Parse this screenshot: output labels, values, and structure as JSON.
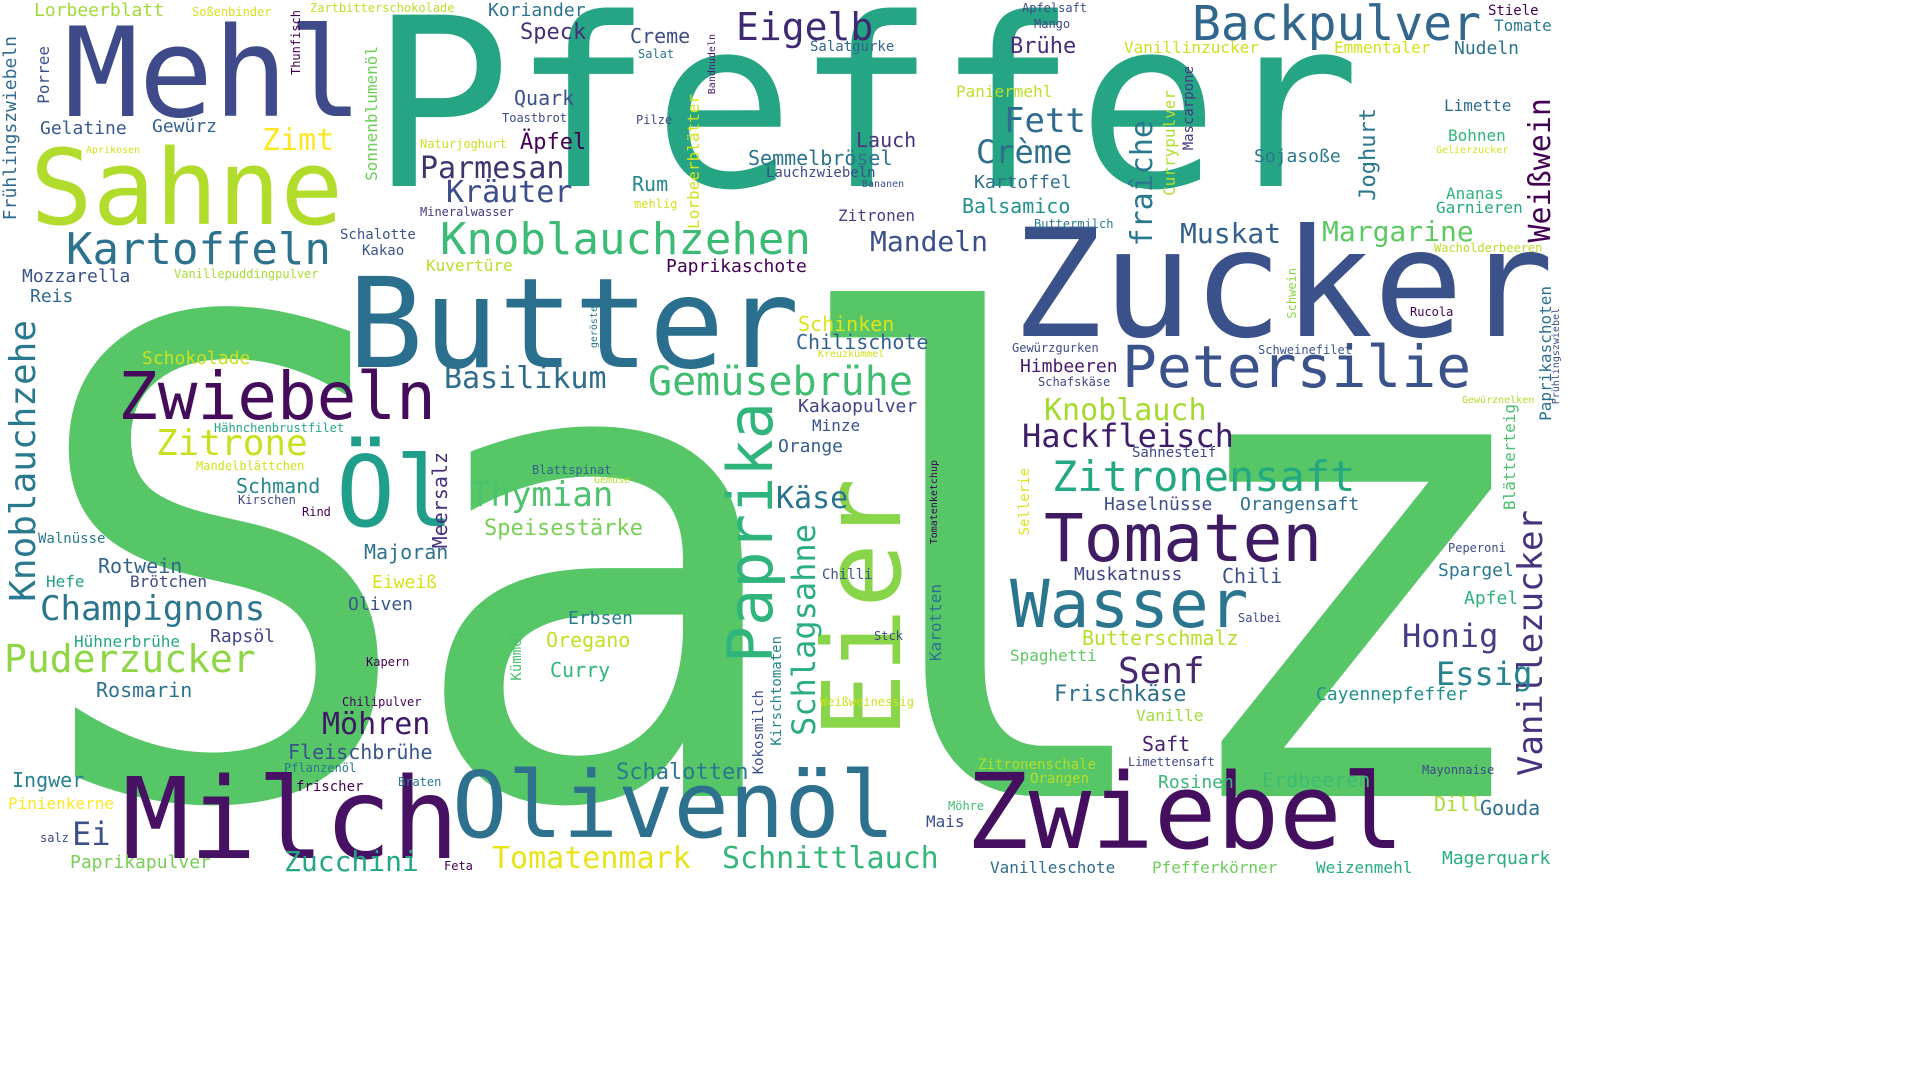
{
  "words": [
    {
      "text": "Salz",
      "color": "#56c667"
    },
    {
      "text": "Pfeffer",
      "color": "#25a584"
    },
    {
      "text": "Zucker",
      "color": "#3b5189"
    },
    {
      "text": "Butter",
      "color": "#2b6f8e"
    },
    {
      "text": "Mehl",
      "color": "#3e4a89"
    },
    {
      "text": "Sahne",
      "color": "#b2dc2c"
    },
    {
      "text": "Milch",
      "color": "#471164"
    },
    {
      "text": "Olivenöl",
      "color": "#2d718e"
    },
    {
      "text": "Zwiebel",
      "color": "#450f5f"
    },
    {
      "text": "Eier",
      "color": "#89d549"
    },
    {
      "text": "Öl",
      "color": "#1f9e89"
    },
    {
      "text": "Wasser",
      "color": "#2a768e"
    },
    {
      "text": "Tomaten",
      "color": "#3f1b63"
    },
    {
      "text": "Petersilie",
      "color": "#3b528b"
    },
    {
      "text": "Zwiebeln",
      "color": "#440c5a"
    },
    {
      "text": "Paprika",
      "color": "#2fb47c"
    },
    {
      "text": "Backpulver",
      "color": "#31668d"
    },
    {
      "text": "Knoblauchzehen",
      "color": "#3bbb75"
    },
    {
      "text": "Kartoffeln",
      "color": "#2c718e"
    },
    {
      "text": "Gemüsebrühe",
      "color": "#40bd72"
    },
    {
      "text": "Zitronensaft",
      "color": "#23a883"
    },
    {
      "text": "Knoblauchzehe",
      "color": "#297a8e"
    },
    {
      "text": "Vanillezucker",
      "color": "#46327e"
    },
    {
      "text": "Puderzucker",
      "color": "#8ed645"
    },
    {
      "text": "Champignons",
      "color": "#2b758e"
    },
    {
      "text": "Schlagsahne",
      "color": "#29af7f"
    },
    {
      "text": "Zitrone",
      "color": "#c8e020"
    },
    {
      "text": "Hackfleisch",
      "color": "#3f1d6a"
    },
    {
      "text": "Thymian",
      "color": "#4cc26c"
    },
    {
      "text": "Eigelb",
      "color": "#3f2a72"
    },
    {
      "text": "Fett",
      "color": "#2f6b8e"
    },
    {
      "text": "Crème",
      "color": "#2e6f8e"
    },
    {
      "text": "fraîche",
      "color": "#2a788e"
    },
    {
      "text": "Weißwein",
      "color": "#440254"
    },
    {
      "text": "Parmesan",
      "color": "#40346e"
    },
    {
      "text": "Kräuter",
      "color": "#3d4d8a"
    },
    {
      "text": "Basilikum",
      "color": "#2f6c8e"
    },
    {
      "text": "Schnittlauch",
      "color": "#35b779"
    },
    {
      "text": "Tomatenmark",
      "color": "#e7e419"
    },
    {
      "text": "Zucchini",
      "color": "#22a884"
    },
    {
      "text": "Möhren",
      "color": "#3f1965"
    },
    {
      "text": "Senf",
      "color": "#46286f"
    },
    {
      "text": "Honig",
      "color": "#433e85"
    },
    {
      "text": "Essig",
      "color": "#25838e"
    },
    {
      "text": "Knoblauch",
      "color": "#a5da31"
    },
    {
      "text": "Mandeln",
      "color": "#3b4f8a"
    },
    {
      "text": "Muskat",
      "color": "#34608d"
    },
    {
      "text": "Margarine",
      "color": "#5ec962"
    },
    {
      "text": "Käse",
      "color": "#2b738e"
    },
    {
      "text": "Zimt",
      "color": "#fde725"
    },
    {
      "text": "Ei",
      "color": "#3c508b"
    },
    {
      "text": "Schalotten",
      "color": "#29788e"
    },
    {
      "text": "Speck",
      "color": "#472d7b"
    },
    {
      "text": "Creme",
      "color": "#3c4f8a"
    },
    {
      "text": "Brühe",
      "color": "#472c7a"
    },
    {
      "text": "Quark",
      "color": "#3b518b"
    },
    {
      "text": "Äpfel",
      "color": "#440154"
    },
    {
      "text": "Lauch",
      "color": "#463480"
    },
    {
      "text": "Semmelbrösel",
      "color": "#2c738e"
    },
    {
      "text": "Rum",
      "color": "#24868e"
    },
    {
      "text": "Joghurt",
      "color": "#2a778e"
    },
    {
      "text": "Kartoffel",
      "color": "#2e6f8e"
    },
    {
      "text": "Balsamico",
      "color": "#21918c"
    },
    {
      "text": "Mozzarella",
      "color": "#3b528b"
    },
    {
      "text": "Reis",
      "color": "#306a8e"
    },
    {
      "text": "Gelatine",
      "color": "#38598c"
    },
    {
      "text": "Gewürz",
      "color": "#34618d"
    },
    {
      "text": "Rotwein",
      "color": "#32648e"
    },
    {
      "text": "Hefe",
      "color": "#1fa088"
    },
    {
      "text": "Brötchen",
      "color": "#3e4989"
    },
    {
      "text": "Rapsöl",
      "color": "#414487"
    },
    {
      "text": "Rosmarin",
      "color": "#2c728e"
    },
    {
      "text": "Hühnerbrühe",
      "color": "#22a785"
    },
    {
      "text": "Ingwer",
      "color": "#27808e"
    },
    {
      "text": "Pinienkerne",
      "color": "#fde725"
    },
    {
      "text": "Paprikapulver",
      "color": "#75d054"
    },
    {
      "text": "Fleischbrühe",
      "color": "#3a548c"
    },
    {
      "text": "Schmand",
      "color": "#23898e"
    },
    {
      "text": "Majoran",
      "color": "#2c738e"
    },
    {
      "text": "Meersalz",
      "color": "#46317e"
    },
    {
      "text": "Speisestärke",
      "color": "#75d054"
    },
    {
      "text": "Eiweiß",
      "color": "#d8e219"
    },
    {
      "text": "Oliven",
      "color": "#39568c"
    },
    {
      "text": "Erbsen",
      "color": "#287c8e"
    },
    {
      "text": "Oregano",
      "color": "#c2df23"
    },
    {
      "text": "Curry",
      "color": "#32b67a"
    },
    {
      "text": "Butterschmalz",
      "color": "#b5de2b"
    },
    {
      "text": "Frischkäse",
      "color": "#2d708e"
    },
    {
      "text": "Saft",
      "color": "#482173"
    },
    {
      "text": "Vanille",
      "color": "#a0da39"
    },
    {
      "text": "Cayennepfeffer",
      "color": "#21918c"
    },
    {
      "text": "Muskatnuss",
      "color": "#404588"
    },
    {
      "text": "Chili",
      "color": "#3c508b"
    },
    {
      "text": "Spargel",
      "color": "#2a778e"
    },
    {
      "text": "Apfel",
      "color": "#2db27d"
    },
    {
      "text": "Gouda",
      "color": "#2e6e8e"
    },
    {
      "text": "Dill",
      "color": "#a8db34"
    },
    {
      "text": "Magerquark",
      "color": "#27ad81"
    },
    {
      "text": "Erdbeeren",
      "color": "#3fbc73"
    },
    {
      "text": "Rosinen",
      "color": "#37b878"
    },
    {
      "text": "Orangensaft",
      "color": "#2d718e"
    },
    {
      "text": "Haselnüsse",
      "color": "#3d4e8a"
    },
    {
      "text": "Himbeeren",
      "color": "#48196b"
    },
    {
      "text": "Sahnesteif",
      "color": "#3f4889"
    },
    {
      "text": "Schinken",
      "color": "#dde318"
    },
    {
      "text": "Chilischote",
      "color": "#33628d"
    },
    {
      "text": "Kakaopulver",
      "color": "#404387"
    },
    {
      "text": "Minze",
      "color": "#3b528b"
    },
    {
      "text": "Orange",
      "color": "#355e8d"
    },
    {
      "text": "Paprikaschote",
      "color": "#440154"
    },
    {
      "text": "Kuvertüre",
      "color": "#b8de29"
    },
    {
      "text": "Schokolade",
      "color": "#cae11f"
    },
    {
      "text": "Zitronen",
      "color": "#433e85"
    },
    {
      "text": "Mascarpone",
      "color": "#453781"
    },
    {
      "text": "Currypulver",
      "color": "#b0dd2f"
    },
    {
      "text": "Sojasoße",
      "color": "#2a788e"
    },
    {
      "text": "Ananas",
      "color": "#2fb47c"
    },
    {
      "text": "Garnieren",
      "color": "#25ab82"
    },
    {
      "text": "Bohnen",
      "color": "#2fb47c"
    },
    {
      "text": "Limette",
      "color": "#306a8e"
    },
    {
      "text": "Nudeln",
      "color": "#2c728e"
    },
    {
      "text": "Emmentaler",
      "color": "#d2e21b"
    },
    {
      "text": "Vanillinzucker",
      "color": "#cde11d"
    },
    {
      "text": "Salatgurke",
      "color": "#33638d"
    },
    {
      "text": "Koriander",
      "color": "#2c738e"
    },
    {
      "text": "Lorbeerblatt",
      "color": "#a2da37"
    },
    {
      "text": "Porree",
      "color": "#3b528b"
    },
    {
      "text": "Frühlingszwiebeln",
      "color": "#2f6b8e"
    },
    {
      "text": "Gewürzgurken",
      "color": "#3e4c8a"
    },
    {
      "text": "Schweinefilet",
      "color": "#3a548c"
    },
    {
      "text": "Schafskäse",
      "color": "#3f4788"
    },
    {
      "text": "Blätterteig",
      "color": "#4ac16d"
    },
    {
      "text": "Paprikaschoten",
      "color": "#2d708e"
    },
    {
      "text": "Rucola",
      "color": "#440154"
    },
    {
      "text": "Peperoni",
      "color": "#3d4e8a"
    },
    {
      "text": "Salbei",
      "color": "#3f4788"
    },
    {
      "text": "Mayonnaise",
      "color": "#3e4989"
    },
    {
      "text": "Weizenmehl",
      "color": "#25ab82"
    },
    {
      "text": "Pfefferkörner",
      "color": "#6ccd5a"
    },
    {
      "text": "Vanilleschote",
      "color": "#2f6c8e"
    },
    {
      "text": "Orangen",
      "color": "#b5de2b"
    },
    {
      "text": "Zitronenschale",
      "color": "#b2dd2d"
    },
    {
      "text": "Limettensaft",
      "color": "#3e4989"
    },
    {
      "text": "Spaghetti",
      "color": "#5ec962"
    },
    {
      "text": "Mais",
      "color": "#3c4f8a"
    },
    {
      "text": "Möhre",
      "color": "#3dbc74"
    },
    {
      "text": "Weißweinessig",
      "color": "#cae11f"
    },
    {
      "text": "Kokosmilch",
      "color": "#3c508b"
    },
    {
      "text": "Kirschtomaten",
      "color": "#25848e"
    },
    {
      "text": "Stck",
      "color": "#3f4889"
    },
    {
      "text": "Karotten",
      "color": "#2c728e"
    },
    {
      "text": "Kümmel",
      "color": "#4ac16d"
    },
    {
      "text": "Chilli",
      "color": "#3b518b"
    },
    {
      "text": "Tomatenketchup",
      "color": "#440154"
    },
    {
      "text": "Kreuzkümmel",
      "color": "#cde11d"
    },
    {
      "text": "Gemüse",
      "color": "#b5de2b"
    },
    {
      "text": "Blattspinat",
      "color": "#33638d"
    },
    {
      "text": "Sellerie",
      "color": "#dde318"
    },
    {
      "text": "Schwein",
      "color": "#8bd646"
    },
    {
      "text": "Buttermilch",
      "color": "#2a788e"
    },
    {
      "text": "Wacholderbeeren",
      "color": "#bade28"
    },
    {
      "text": "Gewürznelken",
      "color": "#b2dd2d"
    },
    {
      "text": "Gelierzucker",
      "color": "#d8e219"
    },
    {
      "text": "Frühlingszwiebel",
      "color": "#3e4989"
    },
    {
      "text": "Mineralwasser",
      "color": "#453781"
    },
    {
      "text": "Bananen",
      "color": "#3b528b"
    },
    {
      "text": "Lauchzwiebeln",
      "color": "#3e4a89"
    },
    {
      "text": "Lorbeerblätter",
      "color": "#d2e21b"
    },
    {
      "text": "mehlig",
      "color": "#d2e21b"
    },
    {
      "text": "Naturjoghurt",
      "color": "#cde11d"
    },
    {
      "text": "Sonnenblumenöl",
      "color": "#6ece58"
    },
    {
      "text": "Paniermehl",
      "color": "#bddf26"
    },
    {
      "text": "Pilze",
      "color": "#3f4889"
    },
    {
      "text": "Bandnudeln",
      "color": "#481a6c"
    },
    {
      "text": "Salat",
      "color": "#2a768e"
    },
    {
      "text": "Toastbrot",
      "color": "#3e4a89"
    },
    {
      "text": "Thunfisch",
      "color": "#440154"
    },
    {
      "text": "Zartbitterschokolade",
      "color": "#bddf26"
    },
    {
      "text": "Soßenbinder",
      "color": "#d5e21a"
    },
    {
      "text": "Apfelsaft",
      "color": "#3e4989"
    },
    {
      "text": "Mango",
      "color": "#3e4989"
    },
    {
      "text": "Stiele",
      "color": "#440154"
    },
    {
      "text": "Tomate",
      "color": "#2a788e"
    },
    {
      "text": "Aprikosen",
      "color": "#d5e21a"
    },
    {
      "text": "Schalotte",
      "color": "#3b528b"
    },
    {
      "text": "Kakao",
      "color": "#3b528b"
    },
    {
      "text": "Vanillepuddingpulver",
      "color": "#a8db34"
    },
    {
      "text": "Hähnchenbrustfilet",
      "color": "#22a884"
    },
    {
      "text": "Mandelblättchen",
      "color": "#d2e21b"
    },
    {
      "text": "Kirschen",
      "color": "#3e4989"
    },
    {
      "text": "Rind",
      "color": "#440154"
    },
    {
      "text": "geröstet",
      "color": "#2a788e"
    },
    {
      "text": "Walnüsse",
      "color": "#2a788e"
    },
    {
      "text": "Kapern",
      "color": "#440154"
    },
    {
      "text": "Chilipulver",
      "color": "#440154"
    },
    {
      "text": "Pflanzenöl",
      "color": "#2a788e"
    },
    {
      "text": "frischer",
      "color": "#440154"
    },
    {
      "text": "Braten",
      "color": "#2a788e"
    },
    {
      "text": "salz",
      "color": "#3e4989"
    },
    {
      "text": "Feta",
      "color": "#440154"
    }
  ]
}
